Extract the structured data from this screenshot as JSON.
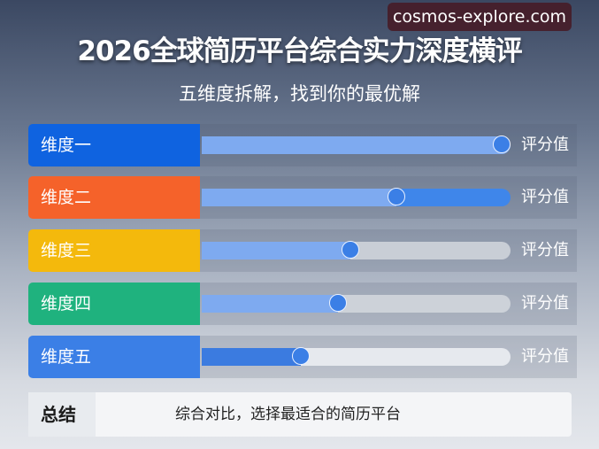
{
  "header": {
    "title": "2026全球简历平台综合实力深度横评",
    "subtitle": "五维度拆解，找到你的最优解",
    "watermark": "cosmos-explore.com"
  },
  "chart_data": {
    "type": "bar",
    "title": "2026全球简历平台综合实力深度横评",
    "subtitle": "五维度拆解，找到你的最优解",
    "categories": [
      "维度一",
      "维度二",
      "维度三",
      "维度四",
      "维度五"
    ],
    "values": [
      97,
      63,
      48,
      44,
      32
    ],
    "value_unit": "percent of track (estimated from slider position)",
    "value_label": "评分值",
    "colors": [
      "#0f63e0",
      "#f5622a",
      "#f4b90c",
      "#1fb27e",
      "#3b7fe6"
    ],
    "fill_color": "#7eaaf0",
    "knob_color": "#3b7fe6",
    "grid": false
  },
  "rows": [
    {
      "label": "维度一",
      "score_label": "评分值"
    },
    {
      "label": "维度二",
      "score_label": "评分值"
    },
    {
      "label": "维度三",
      "score_label": "评分值"
    },
    {
      "label": "维度四",
      "score_label": "评分值"
    },
    {
      "label": "维度五",
      "score_label": "评分值"
    }
  ],
  "summary": {
    "label": "总结",
    "text": "综合对比，选择最适合的简历平台"
  }
}
